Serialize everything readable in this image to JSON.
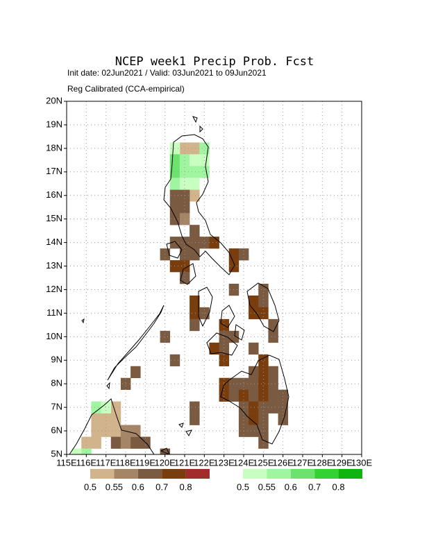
{
  "chart_data": {
    "type": "map",
    "title": "NCEP week1 Precip Prob. Fcst",
    "subtitle": "Init date: 02Jun2021 / Valid: 03Jun2021 to 09Jun2021",
    "subtitle2": "Reg Calibrated (CCA-empirical)",
    "xlim": [
      115,
      130
    ],
    "ylim": [
      5,
      20
    ],
    "xticks": [
      {
        "value": 115,
        "label": "115E"
      },
      {
        "value": 116,
        "label": "116E"
      },
      {
        "value": 117,
        "label": "117E"
      },
      {
        "value": 118,
        "label": "118E"
      },
      {
        "value": 119,
        "label": "119E"
      },
      {
        "value": 120,
        "label": "120E"
      },
      {
        "value": 121,
        "label": "121E"
      },
      {
        "value": 122,
        "label": "122E"
      },
      {
        "value": 123,
        "label": "123E"
      },
      {
        "value": 124,
        "label": "124E"
      },
      {
        "value": 125,
        "label": "125E"
      },
      {
        "value": 126,
        "label": "126E"
      },
      {
        "value": 127,
        "label": "127E"
      },
      {
        "value": 128,
        "label": "128E"
      },
      {
        "value": 129,
        "label": "129E"
      },
      {
        "value": 130,
        "label": "130E"
      }
    ],
    "yticks": [
      {
        "value": 5,
        "label": "5N"
      },
      {
        "value": 6,
        "label": "6N"
      },
      {
        "value": 7,
        "label": "7N"
      },
      {
        "value": 8,
        "label": "8N"
      },
      {
        "value": 9,
        "label": "9N"
      },
      {
        "value": 10,
        "label": "10N"
      },
      {
        "value": 11,
        "label": "11N"
      },
      {
        "value": 12,
        "label": "12N"
      },
      {
        "value": 13,
        "label": "13N"
      },
      {
        "value": 14,
        "label": "14N"
      },
      {
        "value": 15,
        "label": "15N"
      },
      {
        "value": 16,
        "label": "16N"
      },
      {
        "value": 17,
        "label": "17N"
      },
      {
        "value": 18,
        "label": "18N"
      },
      {
        "value": 19,
        "label": "19N"
      },
      {
        "value": 20,
        "label": "20N"
      }
    ],
    "grid": true,
    "cell_size": 0.5,
    "scales": [
      {
        "levels": [
          0.5,
          0.55,
          0.6,
          0.7,
          0.8
        ],
        "colors": [
          "#d2b48c",
          "#a58566",
          "#7a5a40",
          "#7a3e0e",
          "#a12c2c"
        ],
        "cells": [
          [
            121,
            18,
            0.5
          ],
          [
            121.5,
            18,
            0.5
          ],
          [
            121.5,
            16,
            0.5
          ],
          [
            120.5,
            16,
            0.6
          ],
          [
            121,
            16,
            0.6
          ],
          [
            120.5,
            15.5,
            0.6
          ],
          [
            121,
            15.5,
            0.6
          ],
          [
            120.5,
            15,
            0.6
          ],
          [
            121,
            15,
            0.55
          ],
          [
            121.5,
            14.5,
            0.6
          ],
          [
            120.5,
            14,
            0.6
          ],
          [
            121,
            14,
            0.6
          ],
          [
            121.5,
            14,
            0.6
          ],
          [
            122,
            14,
            0.6
          ],
          [
            122.5,
            14,
            0.7
          ],
          [
            120,
            13.5,
            0.6
          ],
          [
            121,
            13.5,
            0.6
          ],
          [
            121.5,
            13.5,
            0.6
          ],
          [
            120.5,
            13,
            0.7
          ],
          [
            121,
            13,
            0.7
          ],
          [
            121,
            12.5,
            0.6
          ],
          [
            123.5,
            13.5,
            0.7
          ],
          [
            124,
            13.5,
            0.6
          ],
          [
            123.5,
            13,
            0.7
          ],
          [
            123.5,
            12,
            0.6
          ],
          [
            125,
            12,
            0.6
          ],
          [
            124.5,
            11.5,
            0.7
          ],
          [
            125,
            11.5,
            0.6
          ],
          [
            124.5,
            11,
            0.7
          ],
          [
            125,
            11,
            0.7
          ],
          [
            121.5,
            11.5,
            0.7
          ],
          [
            121.5,
            11,
            0.7
          ],
          [
            122,
            11,
            0.6
          ],
          [
            121.5,
            10.5,
            0.6
          ],
          [
            123,
            10.5,
            0.7
          ],
          [
            123,
            10,
            0.6
          ],
          [
            123.5,
            10,
            0.6
          ],
          [
            125.5,
            10.5,
            0.6
          ],
          [
            125.5,
            10,
            0.6
          ],
          [
            123,
            9.5,
            0.6
          ],
          [
            122.5,
            9.5,
            0.7
          ],
          [
            123,
            9,
            0.7
          ],
          [
            124.5,
            9.5,
            0.6
          ],
          [
            120,
            10,
            0.6
          ],
          [
            120.5,
            9,
            0.6
          ],
          [
            118.5,
            8.5,
            0.6
          ],
          [
            118,
            8,
            0.6
          ],
          [
            125,
            9,
            0.7
          ],
          [
            125,
            8.5,
            0.7
          ],
          [
            124.5,
            8.5,
            0.6
          ],
          [
            125.5,
            8.5,
            0.6
          ],
          [
            123,
            8,
            0.7
          ],
          [
            123.5,
            8,
            0.6
          ],
          [
            124,
            8,
            0.6
          ],
          [
            124.5,
            8,
            0.6
          ],
          [
            125,
            8,
            0.7
          ],
          [
            125.5,
            8,
            0.6
          ],
          [
            123,
            7.5,
            0.7
          ],
          [
            123.5,
            7.5,
            0.6
          ],
          [
            124,
            7.5,
            0.7
          ],
          [
            124.5,
            7.5,
            0.6
          ],
          [
            125,
            7.5,
            0.7
          ],
          [
            125.5,
            7.5,
            0.6
          ],
          [
            126,
            7.5,
            0.6
          ],
          [
            124,
            7,
            0.6
          ],
          [
            124.5,
            7,
            0.7
          ],
          [
            125,
            7,
            0.6
          ],
          [
            125.5,
            7,
            0.6
          ],
          [
            126,
            7,
            0.6
          ],
          [
            121.5,
            7,
            0.6
          ],
          [
            121.5,
            6.5,
            0.6
          ],
          [
            124,
            6.5,
            0.6
          ],
          [
            124.5,
            6.5,
            0.7
          ],
          [
            125,
            6.5,
            0.6
          ],
          [
            126,
            6.5,
            0.6
          ],
          [
            124,
            6,
            0.6
          ],
          [
            124.5,
            6,
            0.6
          ],
          [
            125,
            6,
            0.6
          ],
          [
            125,
            5.5,
            0.6
          ],
          [
            116.5,
            6.5,
            0.5
          ],
          [
            117,
            6.5,
            0.5
          ],
          [
            116.5,
            6,
            0.5
          ],
          [
            117,
            6,
            0.5
          ],
          [
            117.5,
            7,
            0.5
          ],
          [
            117.5,
            6.5,
            0.5
          ],
          [
            117.5,
            6,
            0.5
          ],
          [
            116,
            5.5,
            0.5
          ],
          [
            116.5,
            5.5,
            0.5
          ],
          [
            117.5,
            5.5,
            0.6
          ],
          [
            118,
            5.5,
            0.55
          ],
          [
            118.5,
            5.5,
            0.6
          ],
          [
            118,
            6,
            0.55
          ],
          [
            118.5,
            6,
            0.55
          ],
          [
            119,
            5.5,
            0.6
          ],
          [
            120,
            5,
            0.6
          ]
        ]
      },
      {
        "levels": [
          0.5,
          0.55,
          0.6,
          0.7,
          0.8
        ],
        "colors": [
          "#c8ffc0",
          "#a0f5a0",
          "#6ee26e",
          "#32d232",
          "#0fb40f"
        ],
        "cells": [
          [
            120.5,
            18,
            0.5
          ],
          [
            122,
            18,
            0.55
          ],
          [
            120.5,
            17.5,
            0.6
          ],
          [
            120.5,
            17,
            0.6
          ],
          [
            121,
            17.5,
            0.55
          ],
          [
            121,
            17,
            0.55
          ],
          [
            121.5,
            17.5,
            0.5
          ],
          [
            121.5,
            17,
            0.55
          ],
          [
            122,
            17.5,
            0.5
          ],
          [
            122,
            17,
            0.55
          ],
          [
            120.5,
            16.5,
            0.55
          ],
          [
            121,
            16.5,
            0.5
          ],
          [
            121.5,
            16.5,
            0.5
          ],
          [
            116.5,
            7,
            0.55
          ],
          [
            115.5,
            5,
            0.5
          ],
          [
            116,
            5,
            0.55
          ],
          [
            117,
            7,
            0.5
          ]
        ]
      }
    ]
  }
}
